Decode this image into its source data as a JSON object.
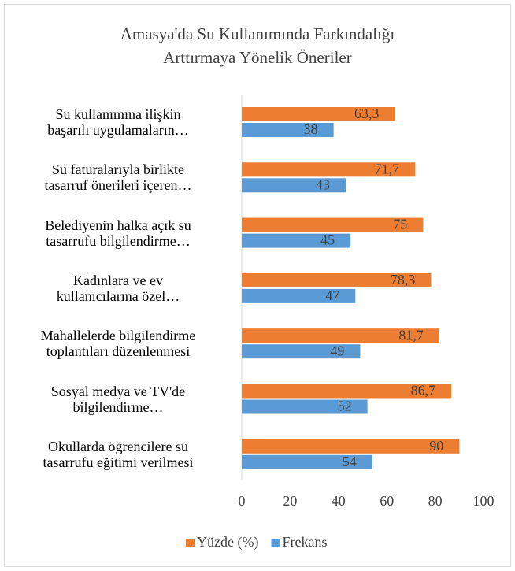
{
  "chart_data": {
    "type": "hbar",
    "title": "Amasya'da Su Kullanımında Farkındalığı\nArttırmaya Yönelik Öneriler",
    "categories": [
      "Su kullanımına ilişkin\nbaşarılı uygulamaların…",
      "Su faturalarıyla birlikte\ntasarruf önerileri içeren…",
      "Belediyenin halka açık su\ntasarrufu bilgilendirme…",
      "Kadınlara ve ev\nkullanıcılarına özel…",
      "Mahallelerde bilgilendirme\ntoplantıları düzenlenmesi",
      "Sosyal medya ve TV'de\nbilgilendirme…",
      "Okullarda öğrencilere su\ntasarrufu eğitimi verilmesi"
    ],
    "series": [
      {
        "name": "Yüzde (%)",
        "color": "#ed7d31",
        "values": [
          63.3,
          71.7,
          75,
          78.3,
          81.7,
          86.7,
          90
        ],
        "value_labels": [
          "63,3",
          "71,7",
          "75",
          "78,3",
          "81,7",
          "86,7",
          "90"
        ]
      },
      {
        "name": "Frekans",
        "color": "#5b9bd5",
        "values": [
          38,
          43,
          45,
          47,
          49,
          52,
          54
        ]
      }
    ],
    "xlim": [
      0,
      100
    ],
    "xticks": [
      0,
      20,
      40,
      60,
      80,
      100
    ],
    "grid": false,
    "legend": "bottom"
  }
}
